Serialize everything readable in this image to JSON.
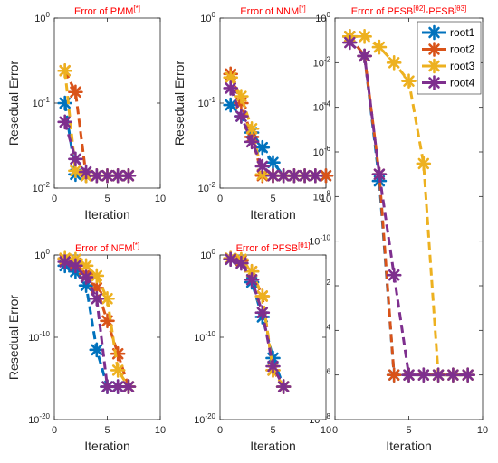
{
  "colors": {
    "root1": "#0072bd",
    "root2": "#d95319",
    "root3": "#edb120",
    "root4": "#7e2f8e",
    "title": "#ff0000",
    "axis": "#262626"
  },
  "chart_data": [
    {
      "id": "pmm",
      "type": "line",
      "title": {
        "text": "Error of PMM",
        "sup": "[*]"
      },
      "xlabel": "Iteration",
      "ylabel": "Resedual Error",
      "xlim": [
        0,
        10
      ],
      "ylim": [
        0.01,
        1
      ],
      "yscale": "log",
      "xticks": [
        "0",
        "5",
        "10"
      ],
      "yticks": [
        {
          "base": "10",
          "exp": "-2",
          "value": 0.01
        },
        {
          "base": "10",
          "exp": "-1",
          "value": 0.1
        },
        {
          "base": "10",
          "exp": "0",
          "value": 1
        }
      ],
      "series": [
        {
          "name": "root1",
          "x": [
            1,
            2,
            3,
            4,
            5,
            6,
            7
          ],
          "y": [
            0.1,
            0.0145,
            0.014,
            0.014,
            0.014,
            0.014,
            0.014
          ]
        },
        {
          "name": "root2",
          "x": [
            1,
            2,
            3,
            4,
            5,
            6,
            7
          ],
          "y": [
            0.24,
            0.135,
            0.014,
            0.014,
            0.014,
            0.014,
            0.014
          ]
        },
        {
          "name": "root3",
          "x": [
            1,
            2,
            3,
            4,
            5,
            6,
            7
          ],
          "y": [
            0.24,
            0.016,
            0.014,
            0.014,
            0.014,
            0.014,
            0.014
          ]
        },
        {
          "name": "root4",
          "x": [
            1,
            2,
            3,
            4,
            5,
            6,
            7
          ],
          "y": [
            0.06,
            0.022,
            0.0155,
            0.014,
            0.014,
            0.014,
            0.014
          ]
        }
      ]
    },
    {
      "id": "nnm",
      "type": "line",
      "title": {
        "text": "Error of NNM",
        "sup": "[*]"
      },
      "xlabel": "Iteration",
      "ylabel": "Resedual Error",
      "xlim": [
        0,
        10
      ],
      "ylim": [
        0.01,
        1
      ],
      "yscale": "log",
      "xticks": [
        "0",
        "5",
        "10"
      ],
      "yticks": [
        {
          "base": "10",
          "exp": "-2",
          "value": 0.01
        },
        {
          "base": "10",
          "exp": "-1",
          "value": 0.1
        },
        {
          "base": "10",
          "exp": "0",
          "value": 1
        }
      ],
      "series": [
        {
          "name": "root1",
          "x": [
            1,
            2,
            3,
            4,
            5,
            6,
            7,
            8,
            9,
            10
          ],
          "y": [
            0.095,
            0.07,
            0.045,
            0.03,
            0.02,
            0.014,
            0.014,
            0.014,
            0.014,
            0.014
          ]
        },
        {
          "name": "root2",
          "x": [
            1,
            2,
            3,
            4,
            5,
            6,
            7,
            8,
            9,
            10
          ],
          "y": [
            0.22,
            0.1,
            0.04,
            0.014,
            0.014,
            0.014,
            0.014,
            0.014,
            0.014,
            0.014
          ]
        },
        {
          "name": "root3",
          "x": [
            1,
            2,
            3,
            4,
            5,
            6,
            7,
            8,
            9
          ],
          "y": [
            0.2,
            0.12,
            0.05,
            0.0145,
            0.014,
            0.014,
            0.014,
            0.014,
            0.014
          ]
        },
        {
          "name": "root4",
          "x": [
            1,
            2,
            3,
            4,
            5,
            6,
            7,
            8,
            9
          ],
          "y": [
            0.15,
            0.07,
            0.035,
            0.018,
            0.014,
            0.014,
            0.014,
            0.014,
            0.014
          ]
        }
      ]
    },
    {
      "id": "pfsb2",
      "type": "line",
      "title": {
        "parts": [
          {
            "text": "Error of PFSB",
            "sup": "[θ2]"
          },
          {
            "text": "-PFSB",
            "sup": "[θ3]"
          }
        ]
      },
      "xlabel": "Iteration",
      "ylabel": "",
      "xlim": [
        0,
        10
      ],
      "ylim": [
        1e-18,
        1
      ],
      "yscale": "log",
      "xticks": [
        "0",
        "5",
        "10"
      ],
      "yticks": [
        {
          "base": "10",
          "exp": "-18",
          "value": 1e-18
        },
        {
          "base": "10",
          "exp": "-16",
          "value": 1e-16
        },
        {
          "base": "10",
          "exp": "-14",
          "value": 1e-14
        },
        {
          "base": "10",
          "exp": "-12",
          "value": 1e-12
        },
        {
          "base": "10",
          "exp": "-10",
          "value": 1e-10
        },
        {
          "base": "10",
          "exp": "-8",
          "value": 1e-08
        },
        {
          "base": "10",
          "exp": "-6",
          "value": 1e-06
        },
        {
          "base": "10",
          "exp": "-4",
          "value": 0.0001
        },
        {
          "base": "10",
          "exp": "-2",
          "value": 0.01
        },
        {
          "base": "10",
          "exp": "0",
          "value": 1
        }
      ],
      "legend": {
        "placement": "top-right",
        "entries": [
          "root1",
          "root2",
          "root3",
          "root4"
        ]
      },
      "series": [
        {
          "name": "root1",
          "x": [
            1,
            2,
            3,
            4,
            5,
            6,
            7,
            8,
            9
          ],
          "y": [
            0.15,
            0.02,
            5e-08,
            1e-16,
            1e-16,
            1e-16,
            1e-16,
            1e-16,
            1e-16
          ]
        },
        {
          "name": "root2",
          "x": [
            1,
            2,
            3,
            4,
            5,
            6,
            7,
            8,
            9
          ],
          "y": [
            0.15,
            0.02,
            1e-07,
            1e-16,
            1e-16,
            1e-16,
            1e-16,
            1e-16,
            1e-16
          ]
        },
        {
          "name": "root3",
          "x": [
            1,
            2,
            3,
            4,
            5,
            6,
            7,
            8,
            9
          ],
          "y": [
            0.15,
            0.15,
            0.05,
            0.01,
            0.0015,
            3e-07,
            1e-16,
            1e-16,
            1e-16
          ]
        },
        {
          "name": "root4",
          "x": [
            1,
            2,
            3,
            4,
            5,
            6,
            7,
            8,
            9
          ],
          "y": [
            0.08,
            0.02,
            1e-07,
            3e-12,
            1e-16,
            1e-16,
            1e-16,
            1e-16,
            1e-16
          ]
        }
      ]
    },
    {
      "id": "nfm",
      "type": "line",
      "title": {
        "text": "Error of NFM",
        "sup": "[*]"
      },
      "xlabel": "Iteration",
      "ylabel": "Resedual Error",
      "xlim": [
        0,
        10
      ],
      "ylim": [
        1e-20,
        1
      ],
      "yscale": "log",
      "xticks": [
        "0",
        "5",
        "10"
      ],
      "yticks": [
        {
          "base": "10",
          "exp": "-20",
          "value": 1e-20
        },
        {
          "base": "10",
          "exp": "-10",
          "value": 1e-10
        },
        {
          "base": "10",
          "exp": "0",
          "value": 1
        }
      ],
      "series": [
        {
          "name": "root1",
          "x": [
            1,
            2,
            3,
            4,
            5,
            6,
            7
          ],
          "y": [
            0.05,
            0.01,
            0.0002,
            3e-12,
            1e-16,
            1e-16,
            1e-16
          ]
        },
        {
          "name": "root2",
          "x": [
            1,
            2,
            3,
            4,
            5,
            6,
            7
          ],
          "y": [
            0.3,
            0.1,
            0.005,
            0.0001,
            1e-08,
            1e-12,
            1e-16
          ]
        },
        {
          "name": "root3",
          "x": [
            1,
            2,
            3,
            4,
            5,
            6,
            7
          ],
          "y": [
            0.4,
            0.3,
            0.05,
            0.003,
            5e-06,
            1e-14,
            1e-16
          ]
        },
        {
          "name": "root4",
          "x": [
            1,
            2,
            3,
            4,
            5,
            6,
            7
          ],
          "y": [
            0.15,
            0.05,
            0.002,
            5e-06,
            1e-16,
            1e-16,
            1e-16
          ]
        }
      ]
    },
    {
      "id": "pfsb1",
      "type": "line",
      "title": {
        "text": "Error of PFSB",
        "sup": "[θ1]"
      },
      "xlabel": "Iteration",
      "ylabel": "",
      "xlim": [
        0,
        10
      ],
      "ylim": [
        1e-20,
        1
      ],
      "yscale": "log",
      "xticks": [
        "0",
        "5",
        "10"
      ],
      "yticks": [
        {
          "base": "10",
          "exp": "-20",
          "value": 1e-20
        },
        {
          "base": "10",
          "exp": "-10",
          "value": 1e-10
        },
        {
          "base": "10",
          "exp": "0",
          "value": 1
        }
      ],
      "series": [
        {
          "name": "root1",
          "x": [
            1,
            2,
            3,
            4,
            5,
            6
          ],
          "y": [
            0.3,
            0.2,
            0.0005,
            3e-08,
            3e-13,
            1e-16
          ]
        },
        {
          "name": "root2",
          "x": [
            1,
            2,
            3,
            4,
            5,
            6
          ],
          "y": [
            0.4,
            0.2,
            0.01,
            1e-05,
            1e-14,
            1e-16
          ]
        },
        {
          "name": "root3",
          "x": [
            1,
            2,
            3,
            4,
            5,
            6
          ],
          "y": [
            0.4,
            0.3,
            0.01,
            1e-05,
            1e-14,
            1e-16
          ]
        },
        {
          "name": "root4",
          "x": [
            1,
            2,
            3,
            4,
            5,
            6
          ],
          "y": [
            0.3,
            0.1,
            0.001,
            1e-07,
            3e-14,
            1e-16
          ]
        }
      ]
    }
  ]
}
